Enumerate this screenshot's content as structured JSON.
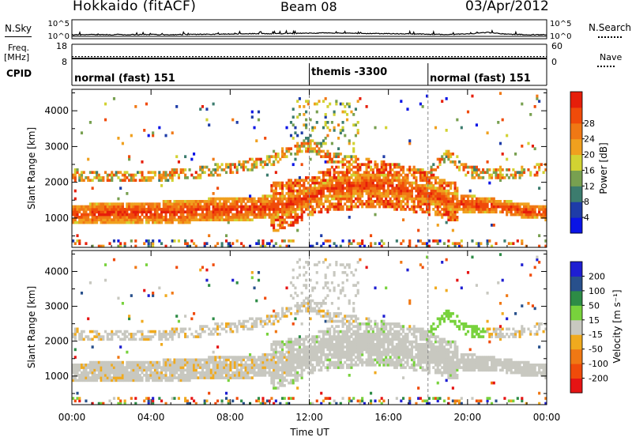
{
  "header": {
    "station": "Hokkaido (fitACF)",
    "beam": "Beam 08",
    "date": "03/Apr/2012"
  },
  "side_labels": {
    "nsky": "N.Sky",
    "freq_line1": "Freq.",
    "freq_line2": "[MHz]",
    "cpid": "CPID",
    "nsearch": "N.Search",
    "nave": "Nave"
  },
  "cpid_segments": [
    {
      "label": "normal (fast) 151",
      "start_hour": 0
    },
    {
      "label": "themis -3300",
      "start_hour": 12
    },
    {
      "label": "normal (fast) 151",
      "start_hour": 18
    }
  ],
  "colors": {
    "scatter_null": "#ffffff",
    "ground_scatter": "#c8c8c0",
    "power_scale": [
      "#0a14e6",
      "#1e3ca8",
      "#3c7c6e",
      "#78a050",
      "#d2d232",
      "#f0a01e",
      "#f07814",
      "#f04b0a",
      "#e61e0a"
    ],
    "velocity_scale": [
      "#1e1ed2",
      "#28508c",
      "#2d8c46",
      "#78d23c",
      "#c8c8c0",
      "#f0aa1e",
      "#f07814",
      "#f04b0a",
      "#e61414"
    ]
  },
  "chart_data": [
    {
      "type": "line",
      "name": "noise-panel",
      "left_axis": {
        "label": "N.Sky",
        "ticks": [
          "10^5",
          "10^0"
        ]
      },
      "right_axis": {
        "label": "N.Search",
        "ticks": [
          "10^5",
          "10^0"
        ]
      },
      "x": [
        0,
        1,
        2,
        3,
        4,
        5,
        6,
        7,
        8,
        9,
        10,
        11,
        12,
        13,
        14,
        15,
        16,
        17,
        18,
        19,
        20,
        21,
        22,
        23,
        24
      ],
      "series": [
        {
          "values": [
            0.4,
            0.6,
            0.5,
            0.5,
            0.6,
            0.5,
            0.6,
            0.7,
            0.8,
            0.9,
            0.9,
            1.0,
            1.1,
            1.2,
            1.1,
            1.0,
            0.9,
            0.8,
            0.7,
            0.6,
            0.8,
            1.4,
            0.7,
            0.5,
            0.5
          ]
        }
      ]
    },
    {
      "type": "line",
      "name": "frequency-panel",
      "left_axis": {
        "label": "Freq. [MHz]",
        "ticks": [
          "18",
          "8"
        ],
        "range": [
          8,
          18
        ]
      },
      "right_axis": {
        "label": "Nave",
        "ticks": [
          "60",
          "0"
        ],
        "range": [
          0,
          60
        ]
      },
      "series": [
        {
          "name": "Nave",
          "x": [
            0,
            24
          ],
          "values": [
            21,
            21
          ]
        },
        {
          "x": [
            0,
            12,
            12,
            24
          ],
          "values": [
            10.5,
            10.5,
            10.5,
            10.5
          ]
        }
      ]
    },
    {
      "type": "heatmap",
      "name": "power-panel",
      "ylabel": "Slant Range [km]",
      "ylim": [
        180,
        4600
      ],
      "yticks": [
        1000,
        2000,
        3000,
        4000
      ],
      "xlim": [
        0,
        24
      ],
      "colorbar": {
        "label": "Power [dB]",
        "range": [
          0,
          32
        ],
        "ticks": [
          4,
          8,
          12,
          16,
          20,
          24,
          28
        ]
      },
      "band_profile": {
        "hours": [
          0,
          2,
          4,
          6,
          8,
          10,
          11,
          12,
          13,
          14,
          15,
          16,
          17,
          18,
          19,
          20,
          21,
          22,
          23,
          24
        ],
        "main_band_center_km": [
          1100,
          1150,
          1150,
          1200,
          1250,
          1300,
          1400,
          1600,
          1800,
          1900,
          1950,
          1900,
          1800,
          1700,
          1500,
          1400,
          1350,
          1300,
          1200,
          1150
        ],
        "main_band_half_width_km": [
          250,
          300,
          300,
          320,
          320,
          330,
          300,
          250,
          280,
          300,
          300,
          300,
          280,
          250,
          250,
          250,
          220,
          200,
          200,
          200
        ],
        "upper_band_center_km": [
          2200,
          2150,
          2150,
          2250,
          2400,
          2600,
          2900,
          3000,
          2700,
          2600,
          2500,
          2400,
          2300,
          2200,
          2800,
          2300,
          2250,
          2200,
          2300,
          2400
        ]
      }
    },
    {
      "type": "heatmap",
      "name": "velocity-panel",
      "ylabel": "Slant Range [km]",
      "xlabel": "Time UT",
      "ylim": [
        180,
        4600
      ],
      "yticks": [
        1000,
        2000,
        3000,
        4000
      ],
      "xlim": [
        0,
        24
      ],
      "xticks": [
        "00:00",
        "04:00",
        "08:00",
        "12:00",
        "16:00",
        "20:00",
        "00:00"
      ],
      "colorbar": {
        "label": "Velocity [m s⁻¹]",
        "range": [
          -250,
          250
        ],
        "ticks": [
          200,
          100,
          50,
          15,
          -15,
          -50,
          -100,
          -200
        ]
      }
    }
  ]
}
